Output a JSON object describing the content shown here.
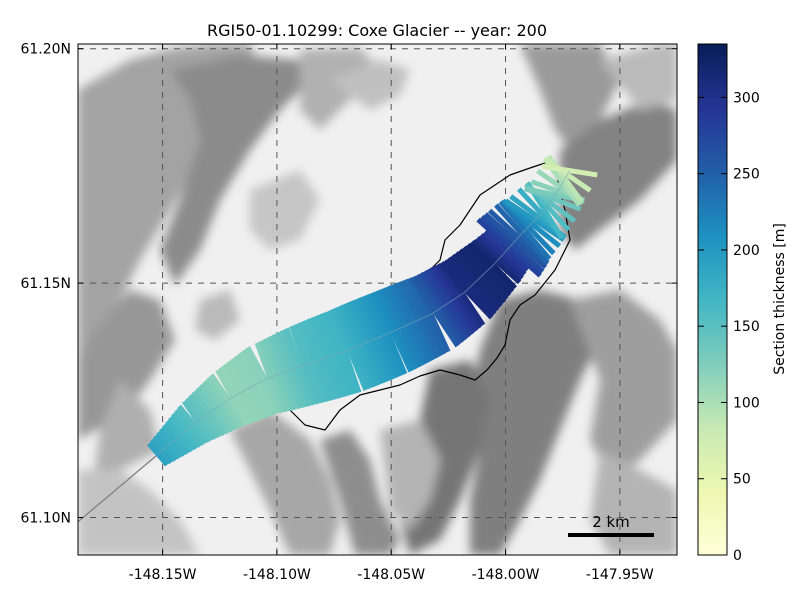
{
  "chart_data": {
    "type": "map",
    "title": "RGI50-01.10299: Coxe Glacier -- year: 200",
    "x_axis": {
      "ticks": [
        "-148.15W",
        "-148.10W",
        "-148.05W",
        "-148.00W",
        "-147.95W"
      ],
      "range": [
        -148.187,
        -147.925
      ]
    },
    "y_axis": {
      "ticks": [
        "61.10N",
        "61.15N",
        "61.20N"
      ],
      "range": [
        61.092,
        61.201
      ]
    },
    "colorbar": {
      "label": "Section thickness [m]",
      "ticks": [
        "0",
        "50",
        "100",
        "150",
        "200",
        "250",
        "300"
      ],
      "range": [
        0,
        335
      ],
      "colormap": "YlGnBu",
      "colors": [
        "#ffffd9",
        "#edf8b1",
        "#c7e9b4",
        "#7fcdbb",
        "#41b6c4",
        "#1d91c0",
        "#225ea8",
        "#253494",
        "#081d58"
      ]
    },
    "scale_bar": {
      "label": "2 km"
    },
    "flowline": {
      "lon": [
        -148.152,
        -148.135,
        -148.12,
        -148.105,
        -148.088,
        -148.07,
        -148.05,
        -148.032,
        -148.018,
        -148.005,
        -147.993,
        -147.982,
        -147.976,
        -147.972
      ],
      "lat": [
        61.1135,
        61.1205,
        61.1255,
        61.1295,
        61.1325,
        61.1355,
        61.1395,
        61.1435,
        61.148,
        61.154,
        61.1605,
        61.166,
        61.1705,
        61.174
      ],
      "section_thickness_m": [
        190,
        150,
        115,
        120,
        155,
        170,
        210,
        250,
        310,
        320,
        245,
        160,
        110,
        70
      ]
    },
    "grid": true
  }
}
